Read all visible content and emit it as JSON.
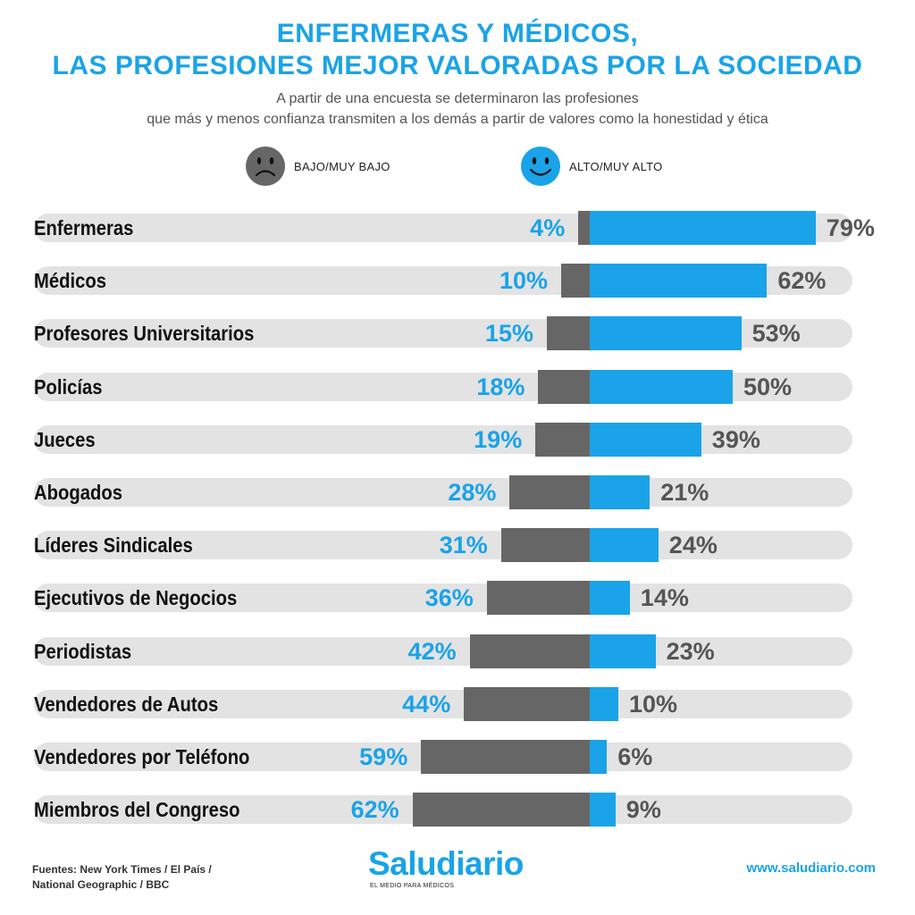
{
  "header": {
    "title_line1": "ENFERMERAS Y MÉDICOS,",
    "title_line2": "LAS PROFESIONES MEJOR VALORADAS POR LA SOCIEDAD",
    "subtitle_line1": "A partir de una encuesta se determinaron las profesiones",
    "subtitle_line2": "que más y menos confianza transmiten a los demás a partir de valores como la honestidad y ética"
  },
  "legend": {
    "negative_label": "BAJO/MUY BAJO",
    "positive_label": "ALTO/MUY ALTO",
    "negative_icon": "sad-face-icon",
    "positive_icon": "happy-face-icon"
  },
  "colors": {
    "accent": "#1aa3e8",
    "negative_bar": "#666666",
    "track": "#e3e3e3"
  },
  "chart_data": {
    "type": "bar",
    "orientation": "horizontal-diverging",
    "categories": [
      "Enfermeras",
      "Médicos",
      "Profesores Universitarios",
      "Policías",
      "Jueces",
      "Abogados",
      "Líderes Sindicales",
      "Ejecutivos de Negocios",
      "Periodistas",
      "Vendedores de Autos",
      "Vendedores por Teléfono",
      "Miembros del Congreso"
    ],
    "series": [
      {
        "name": "BAJO/MUY BAJO",
        "values": [
          4,
          10,
          15,
          18,
          19,
          28,
          31,
          36,
          42,
          44,
          59,
          62
        ],
        "labels": [
          "4%",
          "10%",
          "15%",
          "18%",
          "19%",
          "28%",
          "31%",
          "36%",
          "42%",
          "44%",
          "59%",
          "62%"
        ]
      },
      {
        "name": "ALTO/MUY ALTO",
        "values": [
          79,
          62,
          53,
          50,
          39,
          21,
          24,
          14,
          23,
          10,
          6,
          9
        ],
        "labels": [
          "79%",
          "62%",
          "53%",
          "50%",
          "39%",
          "21%",
          "24%",
          "14%",
          "23%",
          "10%",
          "6%",
          "9%"
        ]
      }
    ],
    "unit": "%"
  },
  "footer": {
    "sources_line1": "Fuentes: New York Times / El País /",
    "sources_line2": "National Geographic / BBC",
    "brand_name": "Saludiario",
    "brand_tagline": "EL MEDIO PARA MÉDICOS",
    "url": "www.saludiario.com"
  }
}
